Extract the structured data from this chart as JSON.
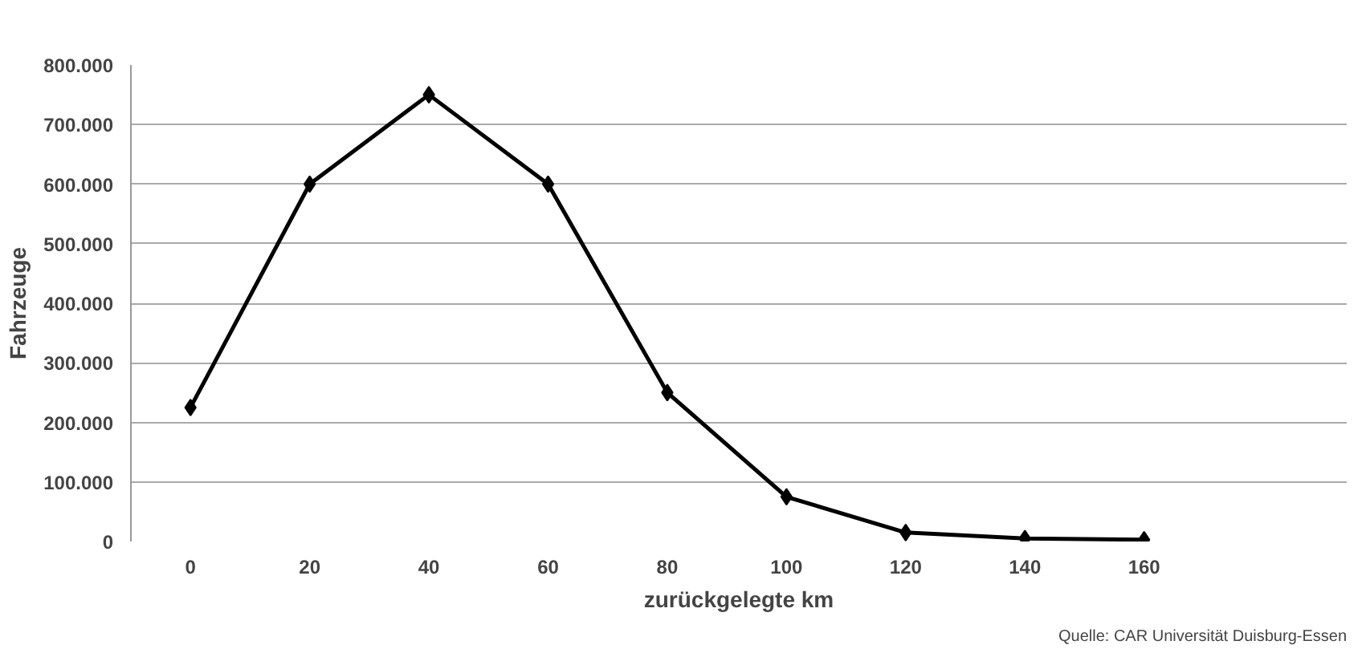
{
  "chart_data": {
    "type": "line",
    "xlabel": "zurückgelegte km",
    "ylabel": "Fahrzeuge",
    "categories": [
      "0",
      "20",
      "40",
      "60",
      "80",
      "100",
      "120",
      "140",
      "160"
    ],
    "series": [
      {
        "color": "#000000",
        "values": [
          225000,
          600000,
          750000,
          600000,
          250000,
          75000,
          15000,
          5000,
          3000
        ]
      }
    ],
    "ylim": [
      0,
      800000
    ],
    "yticks": [
      0,
      {
        "value": 100000,
        "label": "100.000"
      },
      {
        "value": 200000,
        "label": "200.000"
      },
      {
        "value": 300000,
        "label": "300.000"
      },
      {
        "value": 400000,
        "label": "400.000"
      },
      {
        "value": 500000,
        "label": "500.000"
      },
      {
        "value": 600000,
        "label": "600.000"
      },
      {
        "value": 700000,
        "label": "700.000"
      },
      {
        "value": 800000,
        "label": "800.000"
      }
    ],
    "grid": "y",
    "marker": "diamond",
    "line_style": "solid",
    "annotations": [
      "Quelle: CAR Universität Duisburg-Essen"
    ]
  }
}
